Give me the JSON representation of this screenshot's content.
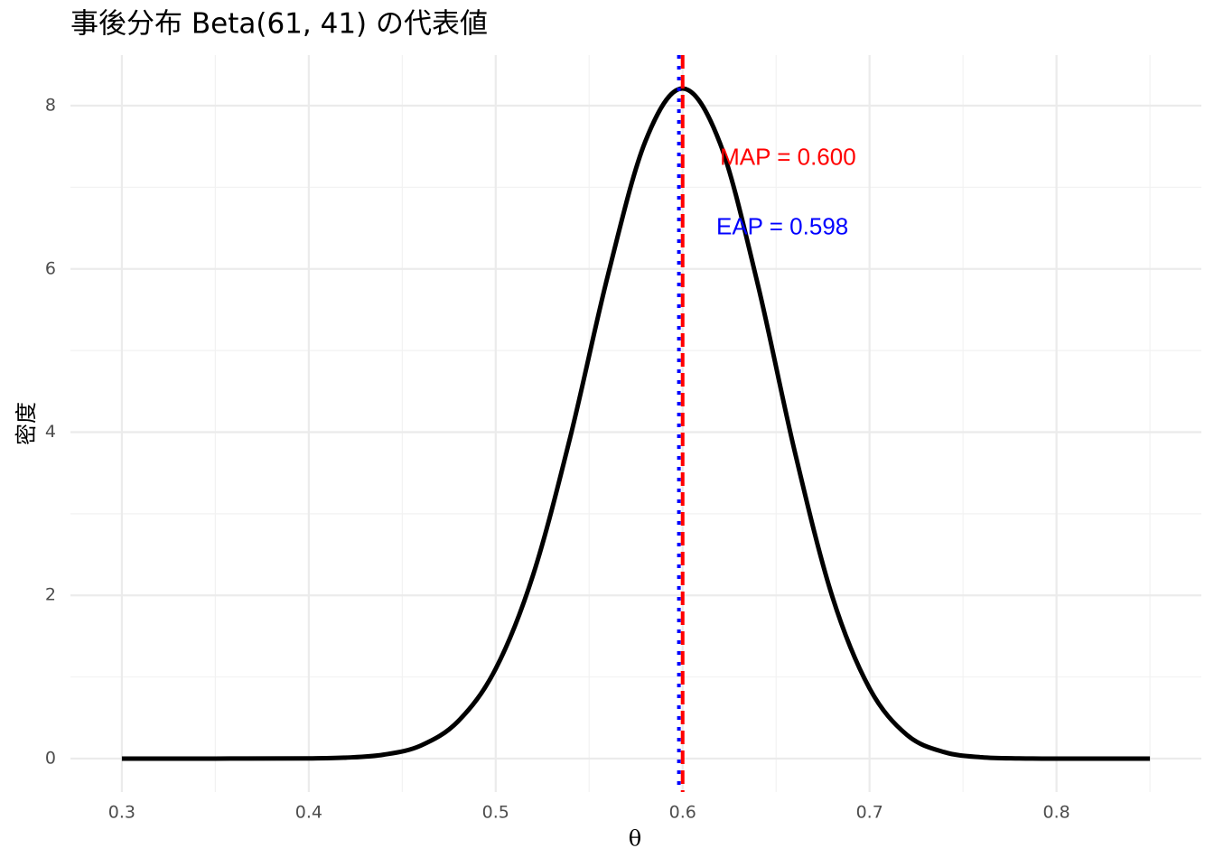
{
  "chart_data": {
    "type": "line",
    "title": "事後分布 Beta(61, 41) の代表値",
    "x_label": "θ",
    "y_label": "密度",
    "x": [
      0.3,
      0.35,
      0.4,
      0.42,
      0.44,
      0.46,
      0.48,
      0.5,
      0.52,
      0.54,
      0.56,
      0.58,
      0.6,
      0.62,
      0.64,
      0.66,
      0.68,
      0.7,
      0.72,
      0.74,
      0.76,
      0.78,
      0.8,
      0.85
    ],
    "series": [
      {
        "color": "#000000",
        "values": [
          0,
          0,
          0.0025,
          0.012,
          0.048,
          0.16,
          0.46,
          1.1,
          2.25,
          3.95,
          5.92,
          7.56,
          8.21,
          7.54,
          5.83,
          3.76,
          1.99,
          0.86,
          0.29,
          0.079,
          0.016,
          0.002,
          0,
          0
        ]
      }
    ],
    "vlines": [
      {
        "value": 0.6,
        "color": "#ff0000",
        "style": "dashed"
      },
      {
        "value": 0.598,
        "color": "#0000ff",
        "style": "dotted"
      }
    ],
    "annotations": [
      {
        "text": "MAP = 0.600",
        "x": 0.62,
        "y": 7.35,
        "color": "#ff0000"
      },
      {
        "text": "EAP = 0.598",
        "x": 0.618,
        "y": 6.5,
        "color": "#0000ff"
      }
    ],
    "xlim": [
      0.2725,
      0.8775
    ],
    "xticks": [
      0.3,
      0.4,
      0.5,
      0.6,
      0.7,
      0.8
    ],
    "xminor_ticks": [
      0.35,
      0.45,
      0.55,
      0.65,
      0.75,
      0.85
    ],
    "ylim": [
      -0.41,
      8.62
    ],
    "yticks": [
      0,
      2,
      4,
      6,
      8
    ],
    "yminor_ticks": [
      1,
      3,
      5,
      7
    ],
    "grid": true
  }
}
